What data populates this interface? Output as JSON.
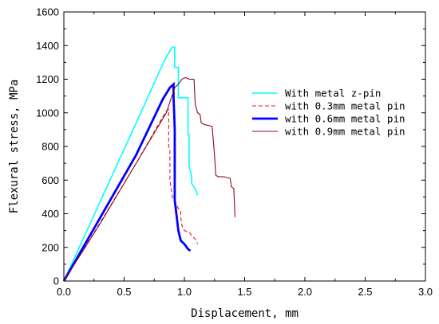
{
  "chart_data": {
    "type": "line",
    "title": "",
    "xlabel": "Displacement, mm",
    "ylabel": "Flexural stress, MPa",
    "xlim": [
      0.0,
      3.0
    ],
    "ylim": [
      0,
      1600
    ],
    "x_ticks": [
      "0.0",
      "0.5",
      "1.0",
      "1.5",
      "2.0",
      "2.5",
      "3.0"
    ],
    "y_ticks": [
      "0",
      "200",
      "400",
      "600",
      "800",
      "1000",
      "1200",
      "1400",
      "1600"
    ],
    "grid": false,
    "legend_position": "right",
    "series": [
      {
        "name": "With metal z-pin",
        "color": "#00ffff",
        "style": "solid",
        "width": 1.6,
        "points": [
          [
            0.0,
            0
          ],
          [
            0.3,
            470
          ],
          [
            0.6,
            940
          ],
          [
            0.84,
            1320
          ],
          [
            0.9,
            1390
          ],
          [
            0.92,
            1390
          ],
          [
            0.92,
            1270
          ],
          [
            0.95,
            1270
          ],
          [
            0.95,
            1090
          ],
          [
            1.0,
            1090
          ],
          [
            1.03,
            1090
          ],
          [
            1.03,
            870
          ],
          [
            1.04,
            870
          ],
          [
            1.04,
            680
          ],
          [
            1.06,
            620
          ],
          [
            1.06,
            580
          ],
          [
            1.09,
            550
          ],
          [
            1.11,
            510
          ]
        ]
      },
      {
        "name": "with 0.3mm metal pin",
        "color": "#e41a1c",
        "style": "dashed",
        "width": 1.1,
        "points": [
          [
            0.0,
            0
          ],
          [
            0.3,
            345
          ],
          [
            0.6,
            700
          ],
          [
            0.8,
            950
          ],
          [
            0.85,
            1010
          ],
          [
            0.87,
            1020
          ],
          [
            0.87,
            800
          ],
          [
            0.88,
            780
          ],
          [
            0.88,
            600
          ],
          [
            0.9,
            500
          ],
          [
            0.93,
            460
          ],
          [
            0.95,
            430
          ],
          [
            0.97,
            420
          ],
          [
            0.97,
            380
          ],
          [
            0.98,
            330
          ],
          [
            1.0,
            300
          ],
          [
            1.04,
            290
          ],
          [
            1.06,
            270
          ],
          [
            1.09,
            250
          ],
          [
            1.11,
            220
          ]
        ]
      },
      {
        "name": "with 0.6mm metal pin",
        "color": "#0000ff",
        "style": "solid",
        "width": 2.8,
        "points": [
          [
            0.0,
            0
          ],
          [
            0.3,
            375
          ],
          [
            0.6,
            750
          ],
          [
            0.82,
            1080
          ],
          [
            0.88,
            1150
          ],
          [
            0.91,
            1170
          ],
          [
            0.91,
            1100
          ],
          [
            0.92,
            900
          ],
          [
            0.92,
            480
          ],
          [
            0.93,
            420
          ],
          [
            0.95,
            300
          ],
          [
            0.97,
            240
          ],
          [
            1.0,
            220
          ],
          [
            1.03,
            190
          ],
          [
            1.05,
            180
          ]
        ]
      },
      {
        "name": "with 0.9mm metal pin",
        "color": "#8b0a1a",
        "style": "solid",
        "width": 1.1,
        "points": [
          [
            0.0,
            0
          ],
          [
            0.3,
            340
          ],
          [
            0.6,
            700
          ],
          [
            0.85,
            1000
          ],
          [
            0.92,
            1150
          ],
          [
            0.95,
            1170
          ],
          [
            0.98,
            1200
          ],
          [
            1.01,
            1210
          ],
          [
            1.04,
            1200
          ],
          [
            1.08,
            1200
          ],
          [
            1.09,
            1050
          ],
          [
            1.11,
            1000
          ],
          [
            1.13,
            990
          ],
          [
            1.14,
            940
          ],
          [
            1.17,
            930
          ],
          [
            1.23,
            920
          ],
          [
            1.25,
            750
          ],
          [
            1.26,
            630
          ],
          [
            1.28,
            620
          ],
          [
            1.3,
            620
          ],
          [
            1.33,
            620
          ],
          [
            1.38,
            610
          ],
          [
            1.39,
            560
          ],
          [
            1.41,
            550
          ],
          [
            1.42,
            380
          ]
        ]
      }
    ]
  }
}
